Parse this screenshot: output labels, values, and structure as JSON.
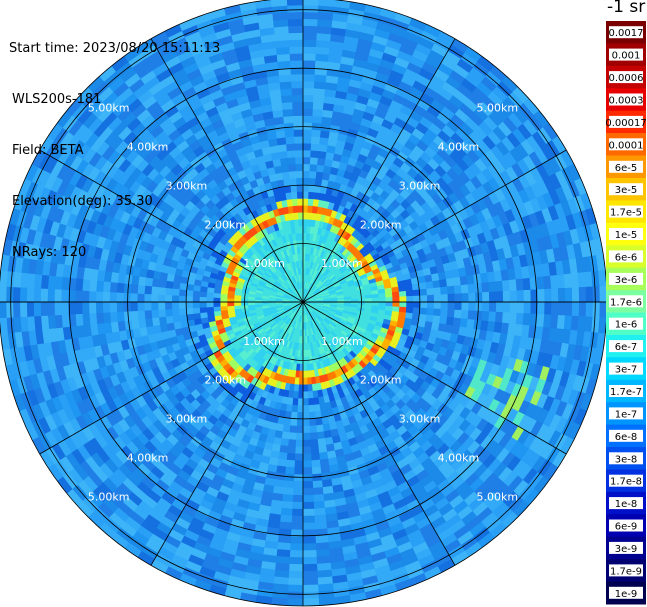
{
  "header": {
    "start_time": "Start time: 2023/08/20 15:11:13",
    "site": "WLS200s-181",
    "field": "Field: BETA",
    "elevation": "Elevation(deg): 35.30",
    "nrays": "NRays: 120"
  },
  "colorbar": {
    "unit": "-1 sr",
    "labels": [
      "0.0017",
      "0.001",
      "0.0006",
      "0.0003",
      "0.00017",
      "0.0001",
      "6e-5",
      "3e-5",
      "1.7e-5",
      "1e-5",
      "6e-6",
      "3e-6",
      "1.7e-6",
      "1e-6",
      "6e-7",
      "3e-7",
      "1.7e-7",
      "1e-7",
      "6e-8",
      "3e-8",
      "1.7e-8",
      "1e-8",
      "6e-9",
      "3e-9",
      "1.7e-9",
      "1e-9"
    ],
    "colors": [
      "#7a0000",
      "#a00000",
      "#c40000",
      "#e60000",
      "#ff2a00",
      "#ff6a00",
      "#ff9800",
      "#ffc400",
      "#ffe600",
      "#ffff10",
      "#d8ff2a",
      "#a8ff5a",
      "#7cffa0",
      "#50ffc8",
      "#20f0f0",
      "#00d8ff",
      "#00b8ff",
      "#0094ff",
      "#0070ff",
      "#0050f0",
      "#0030e0",
      "#0010c8",
      "#0000b0",
      "#000090",
      "#000070",
      "#000050"
    ]
  },
  "chart_data": {
    "type": "heatmap",
    "projection": "polar PPI scan",
    "field": "BETA",
    "site": "WLS200s-181",
    "start_time": "2023/08/20 15:11:13",
    "elevation_deg": 35.3,
    "nrays": 120,
    "range_rings_km": [
      1.0,
      2.0,
      3.0,
      4.0,
      5.0
    ],
    "ring_labels": [
      "1.00km",
      "2.00km",
      "3.00km",
      "4.00km",
      "5.00km"
    ],
    "spokes_deg": [
      0,
      30,
      60,
      90,
      120,
      150,
      180,
      210,
      240,
      270,
      300,
      330
    ],
    "max_range_km": 5.2,
    "scale": "log",
    "grid": true
  }
}
